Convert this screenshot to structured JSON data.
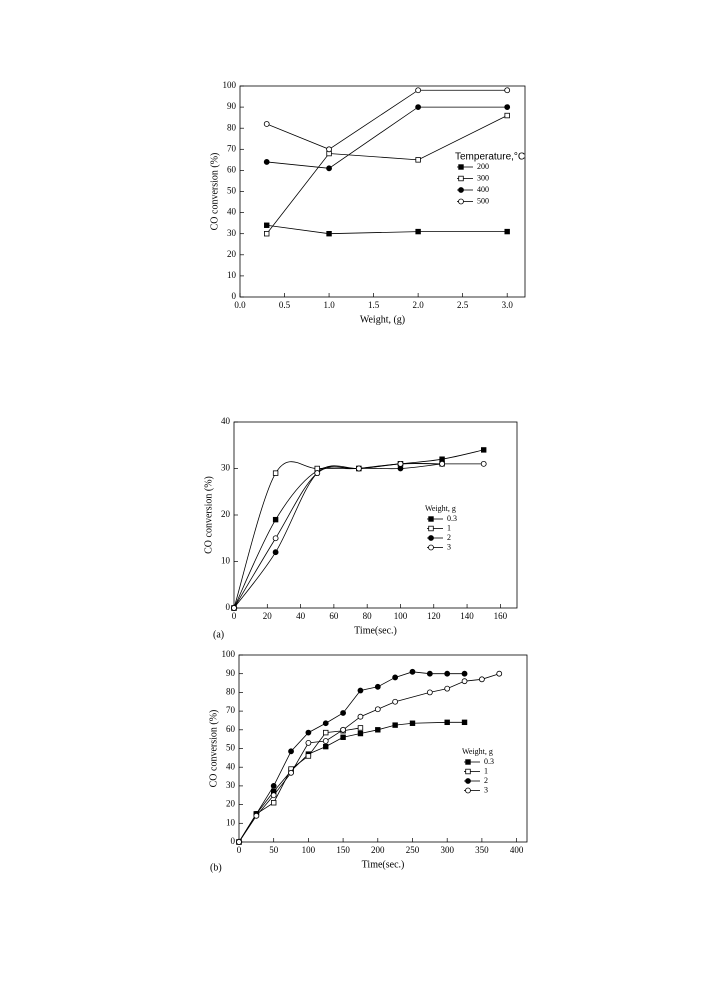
{
  "chart_data": [
    {
      "type": "line",
      "xlabel": "Weight, (g)",
      "ylabel": "CO conversion (%)",
      "xlim": [
        0,
        3.2
      ],
      "ylim": [
        0,
        100
      ],
      "xticks": [
        {
          "value": 0,
          "label": "0.0"
        },
        0.5,
        {
          "value": 1,
          "label": "1.0"
        },
        1.5,
        {
          "value": 2,
          "label": "2.0"
        },
        2.5,
        {
          "value": 3,
          "label": "3.0"
        }
      ],
      "yticks": [
        0,
        10,
        20,
        30,
        40,
        50,
        60,
        70,
        80,
        90,
        100
      ],
      "smooth": false,
      "legend_title": "Temperature,°C",
      "legend": "right",
      "series": [
        {
          "name": "200",
          "color": "#000",
          "marker": "filled-square",
          "x": [
            0.3,
            1,
            2,
            3
          ],
          "values": [
            34,
            30,
            31,
            31
          ]
        },
        {
          "name": "300",
          "color": "#000",
          "marker": "open-square",
          "x": [
            0.3,
            1,
            2,
            3
          ],
          "values": [
            30,
            68,
            65,
            86
          ]
        },
        {
          "name": "400",
          "color": "#000",
          "marker": "filled-circle",
          "x": [
            0.3,
            1,
            2,
            3
          ],
          "values": [
            64,
            61,
            90,
            90
          ]
        },
        {
          "name": "500",
          "color": "#000",
          "marker": "open-circle",
          "x": [
            0.3,
            1,
            2,
            3
          ],
          "values": [
            82,
            70,
            98,
            98
          ]
        }
      ]
    },
    {
      "type": "line",
      "panel_label": "(a)",
      "xlabel": "Time(sec.)",
      "ylabel": "CO conversion (%)",
      "xlim": [
        0,
        170
      ],
      "ylim": [
        0,
        40
      ],
      "xticks": [
        0,
        20,
        40,
        60,
        80,
        100,
        120,
        140,
        160
      ],
      "yticks": [
        0,
        10,
        20,
        30,
        40
      ],
      "smooth": true,
      "legend_title": "Weight, g",
      "legend": "right",
      "series": [
        {
          "name": "0.3",
          "color": "#000",
          "marker": "filled-square",
          "x": [
            0,
            25,
            50,
            75,
            100,
            125,
            150
          ],
          "values": [
            0,
            19,
            29.5,
            30,
            31,
            32,
            34
          ]
        },
        {
          "name": "1",
          "color": "#000",
          "marker": "open-square",
          "x": [
            0,
            25,
            50,
            75,
            100,
            125
          ],
          "values": [
            0,
            29,
            30,
            30,
            31,
            31
          ]
        },
        {
          "name": "2",
          "color": "#000",
          "marker": "filled-circle",
          "x": [
            0,
            25,
            50,
            75,
            100,
            125
          ],
          "values": [
            0,
            12,
            29,
            30,
            30,
            31
          ]
        },
        {
          "name": "3",
          "color": "#000",
          "marker": "open-circle",
          "x": [
            0,
            25,
            50,
            75,
            100,
            125,
            150
          ],
          "values": [
            0,
            15,
            29,
            30,
            31,
            31,
            31
          ]
        }
      ]
    },
    {
      "type": "line",
      "panel_label": "(b)",
      "xlabel": "Time(sec.)",
      "ylabel": "CO conversion (%)",
      "xlim": [
        0,
        415
      ],
      "ylim": [
        0,
        100
      ],
      "xticks": [
        0,
        50,
        100,
        150,
        200,
        250,
        300,
        350,
        400
      ],
      "yticks": [
        0,
        10,
        20,
        30,
        40,
        50,
        60,
        70,
        80,
        90,
        100
      ],
      "smooth": false,
      "legend_title": "Weight, g",
      "legend": "right",
      "series": [
        {
          "name": "0.3",
          "color": "#000",
          "marker": "filled-square",
          "x": [
            0,
            25,
            50,
            75,
            100,
            125,
            150,
            175,
            200,
            225,
            250,
            300,
            325
          ],
          "values": [
            0,
            15,
            27,
            38,
            47,
            51,
            56,
            58,
            60,
            62.5,
            63.5,
            64,
            64
          ]
        },
        {
          "name": "1",
          "color": "#000",
          "marker": "open-square",
          "x": [
            0,
            25,
            50,
            75,
            100,
            125,
            150,
            175
          ],
          "values": [
            0,
            15,
            21,
            39,
            46,
            58.5,
            59.5,
            61
          ]
        },
        {
          "name": "2",
          "color": "#000",
          "marker": "filled-circle",
          "x": [
            0,
            25,
            50,
            75,
            100,
            125,
            150,
            175,
            200,
            225,
            250,
            275,
            300,
            325
          ],
          "values": [
            0,
            15,
            30,
            48.5,
            58.5,
            63.5,
            69,
            81,
            83,
            88,
            91,
            90,
            90,
            90
          ]
        },
        {
          "name": "3",
          "color": "#000",
          "marker": "open-circle",
          "x": [
            0,
            25,
            50,
            75,
            100,
            125,
            150,
            175,
            200,
            225,
            275,
            300,
            325,
            350,
            375
          ],
          "values": [
            0,
            14,
            25,
            37,
            53,
            54,
            60,
            67,
            71,
            75,
            80,
            82,
            86,
            87,
            90
          ]
        }
      ]
    }
  ]
}
